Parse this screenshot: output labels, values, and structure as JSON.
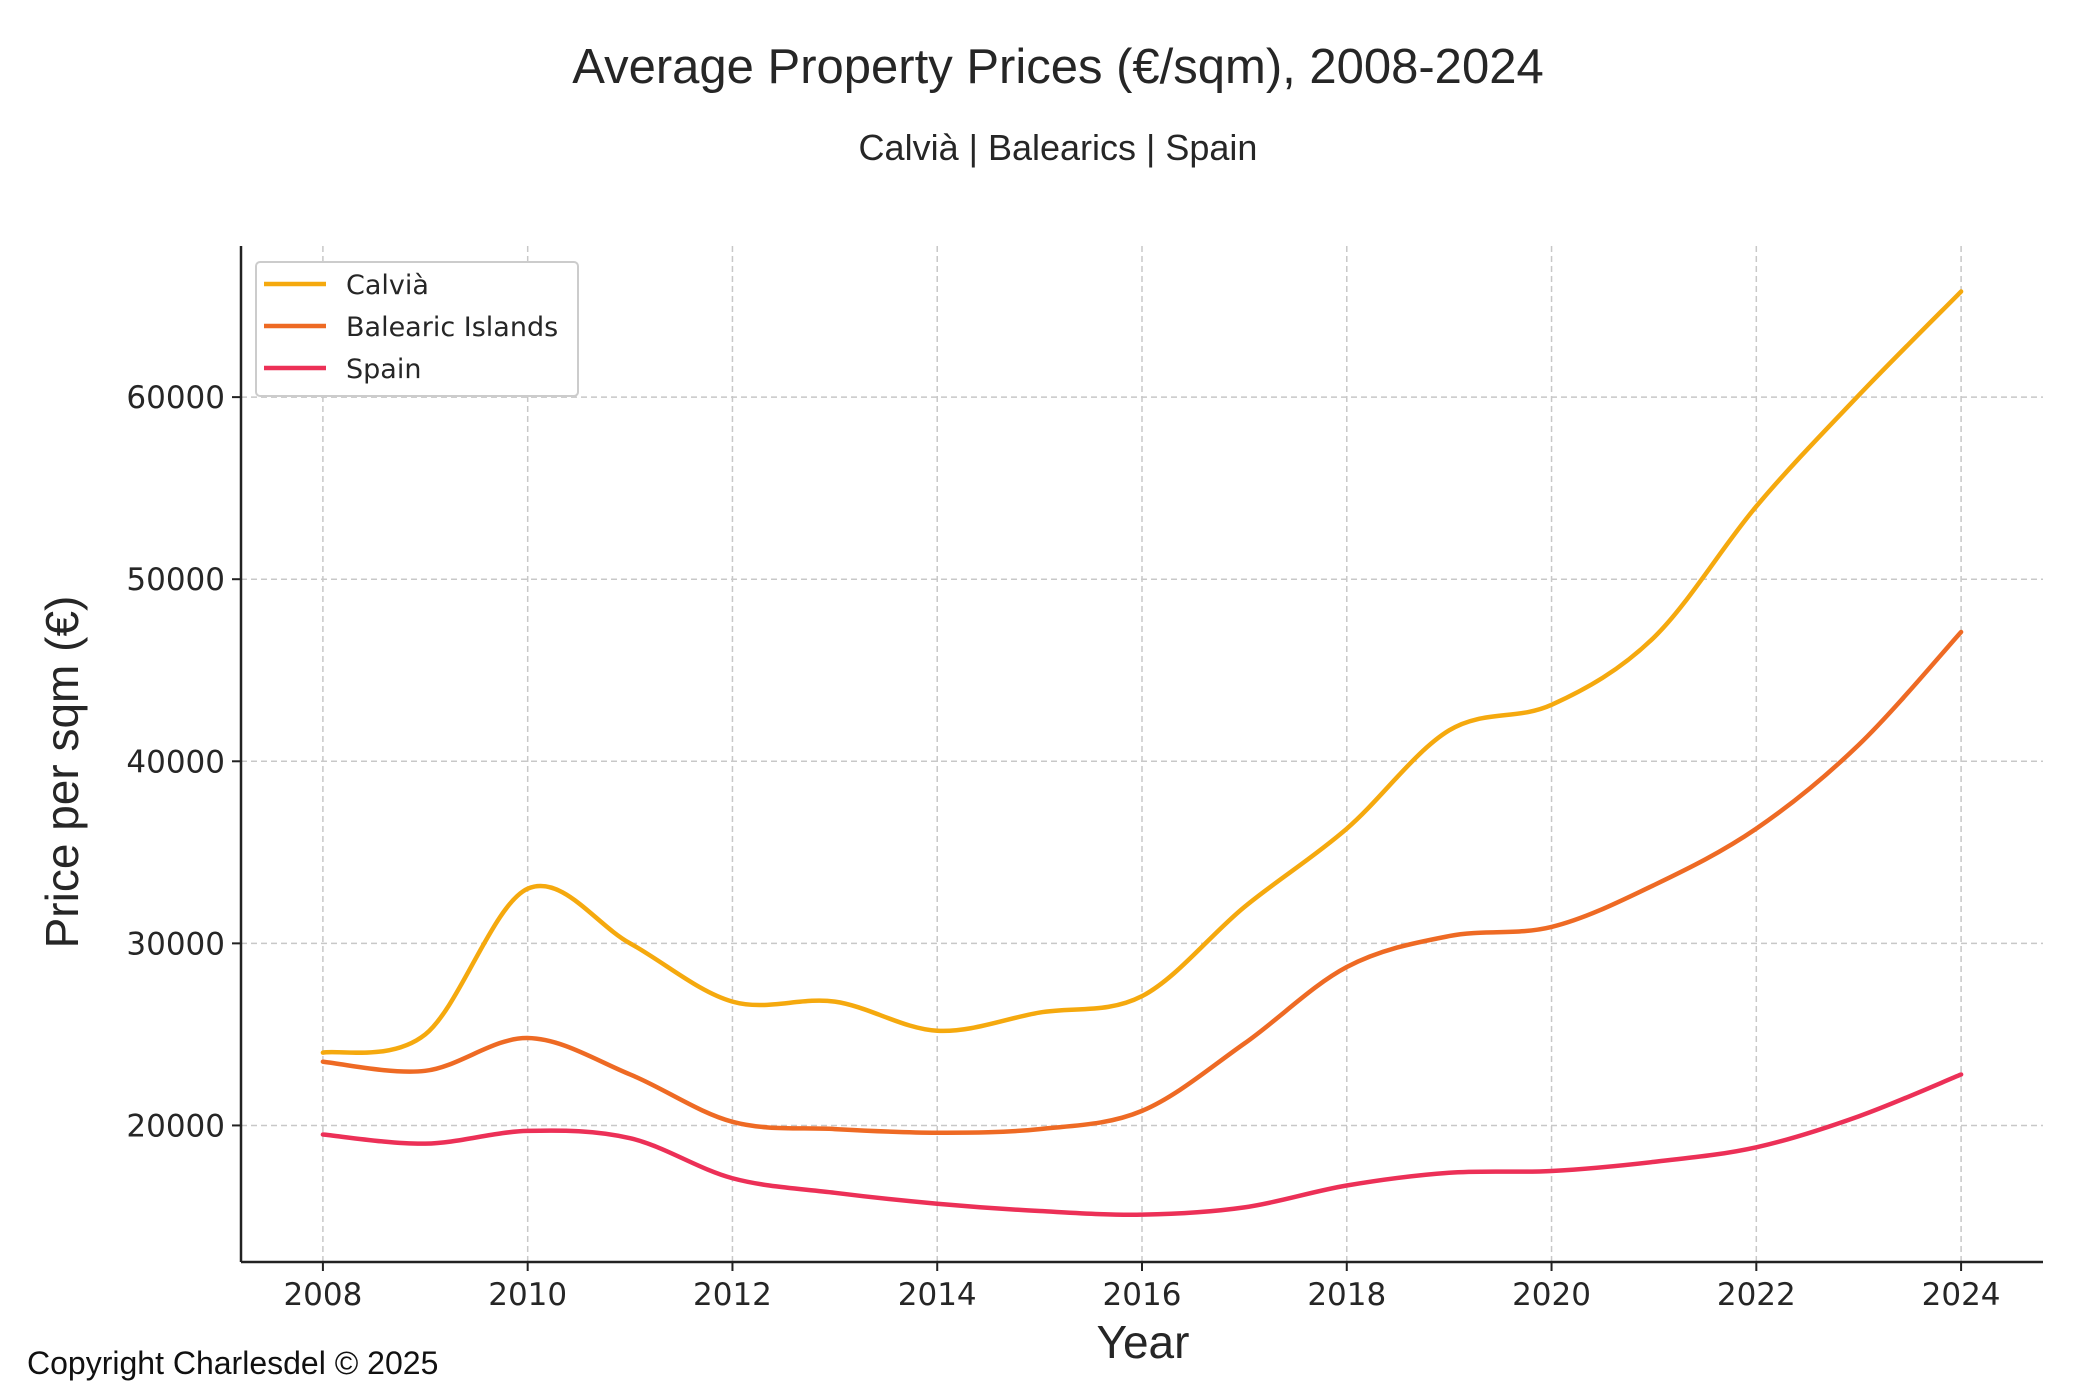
{
  "chart_data": {
    "type": "line",
    "title": "Average Property Prices (€/sqm), 2008-2024",
    "subtitle": "Calvià | Balearics | Spain",
    "xlabel": "Year",
    "ylabel": "Price per sqm (€)",
    "x": [
      2008,
      2009,
      2010,
      2011,
      2012,
      2013,
      2014,
      2015,
      2016,
      2017,
      2018,
      2019,
      2020,
      2021,
      2022,
      2023,
      2024
    ],
    "xticks": [
      "2008",
      "2010",
      "2012",
      "2014",
      "2016",
      "2018",
      "2020",
      "2022",
      "2024"
    ],
    "yticks": [
      "20000",
      "30000",
      "40000",
      "50000",
      "60000"
    ],
    "xlim": [
      2007.2,
      2024.8
    ],
    "ylim": [
      12500,
      68300
    ],
    "grid": true,
    "legend_position": "top-left",
    "series": [
      {
        "name": "Calvià",
        "color": "#F5A90E",
        "values": [
          24000,
          25000,
          33000,
          30000,
          26800,
          26800,
          25200,
          26200,
          27100,
          32000,
          36300,
          41700,
          43100,
          46800,
          54000,
          60100,
          65800
        ]
      },
      {
        "name": "Balearic Islands",
        "color": "#EE6A24",
        "values": [
          23500,
          23000,
          24800,
          22800,
          20200,
          19800,
          19600,
          19800,
          20800,
          24500,
          28700,
          30400,
          30900,
          33200,
          36300,
          40900,
          47100
        ]
      },
      {
        "name": "Spain",
        "color": "#EC3057",
        "values": [
          19500,
          19000,
          19700,
          19300,
          17100,
          16300,
          15700,
          15300,
          15100,
          15500,
          16700,
          17400,
          17500,
          18000,
          18800,
          20500,
          22800
        ]
      }
    ]
  },
  "footer": {
    "copyright": "Copyright Charlesdel © 2025"
  }
}
